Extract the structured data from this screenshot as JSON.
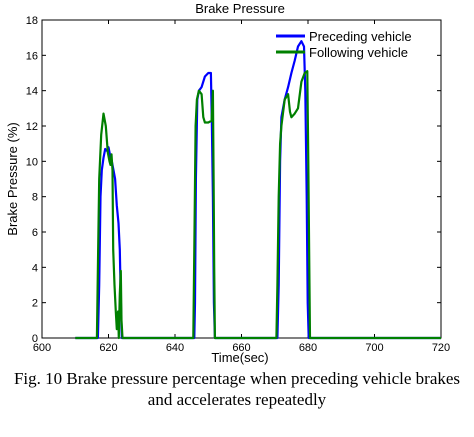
{
  "chart_data": {
    "type": "line",
    "title": "Brake Pressure",
    "xlabel": "Time(sec)",
    "ylabel": "Brake Pressure (%)",
    "xlim": [
      600,
      720
    ],
    "ylim": [
      0,
      18
    ],
    "xticks": [
      600,
      620,
      640,
      660,
      680,
      700,
      720
    ],
    "yticks": [
      0,
      2,
      4,
      6,
      8,
      10,
      12,
      14,
      16,
      18
    ],
    "grid": false,
    "legend_position": "top-right",
    "series": [
      {
        "name": "Preceding vehicle",
        "color": "#0000ff",
        "points": [
          [
            610,
            0
          ],
          [
            616.8,
            0
          ],
          [
            617.2,
            3
          ],
          [
            617.6,
            8
          ],
          [
            618.0,
            9.5
          ],
          [
            618.5,
            10.2
          ],
          [
            619.0,
            10.7
          ],
          [
            619.5,
            10.6
          ],
          [
            620.0,
            10.8
          ],
          [
            620.5,
            10.3
          ],
          [
            621.0,
            10.0
          ],
          [
            621.5,
            9.5
          ],
          [
            622.0,
            9.0
          ],
          [
            622.5,
            7.5
          ],
          [
            623.0,
            6.5
          ],
          [
            623.4,
            5.0
          ],
          [
            623.6,
            3.0
          ],
          [
            623.8,
            1.5
          ],
          [
            624.0,
            0
          ],
          [
            645.8,
            0
          ],
          [
            646.0,
            2
          ],
          [
            646.3,
            9
          ],
          [
            646.7,
            13.5
          ],
          [
            647.2,
            14.0
          ],
          [
            648.0,
            14.2
          ],
          [
            649.0,
            14.8
          ],
          [
            650.0,
            15.0
          ],
          [
            650.8,
            15.0
          ],
          [
            651.1,
            12
          ],
          [
            651.4,
            8
          ],
          [
            651.7,
            2
          ],
          [
            652.0,
            0
          ],
          [
            670.8,
            0
          ],
          [
            671.2,
            3
          ],
          [
            671.6,
            10
          ],
          [
            672.0,
            12.5
          ],
          [
            673.0,
            13.5
          ],
          [
            674.0,
            14.2
          ],
          [
            675.0,
            15.0
          ],
          [
            676.0,
            15.7
          ],
          [
            677.0,
            16.5
          ],
          [
            678.0,
            16.8
          ],
          [
            678.8,
            16.5
          ],
          [
            679.2,
            14
          ],
          [
            679.6,
            8
          ],
          [
            679.9,
            2
          ],
          [
            680.2,
            0
          ],
          [
            720,
            0
          ]
        ]
      },
      {
        "name": "Following vehicle",
        "color": "#008000",
        "points": [
          [
            610,
            0
          ],
          [
            616.5,
            0
          ],
          [
            616.8,
            4
          ],
          [
            617.2,
            9
          ],
          [
            617.8,
            11.5
          ],
          [
            618.5,
            12.7
          ],
          [
            619.2,
            12.0
          ],
          [
            619.8,
            10.5
          ],
          [
            620.3,
            10.0
          ],
          [
            620.6,
            9.8
          ],
          [
            620.9,
            10.4
          ],
          [
            621.2,
            9.5
          ],
          [
            621.4,
            5
          ],
          [
            621.8,
            3
          ],
          [
            622.2,
            1.5
          ],
          [
            622.5,
            0.5
          ],
          [
            622.9,
            1.5
          ],
          [
            623.1,
            0
          ],
          [
            623.4,
            2.5
          ],
          [
            623.7,
            3.8
          ],
          [
            623.9,
            1
          ],
          [
            624.2,
            0
          ],
          [
            645.5,
            0
          ],
          [
            645.8,
            5
          ],
          [
            646.2,
            12.0
          ],
          [
            646.6,
            13.5
          ],
          [
            647.2,
            14.0
          ],
          [
            648.0,
            13.8
          ],
          [
            648.5,
            12.5
          ],
          [
            649.0,
            12.2
          ],
          [
            650.0,
            12.2
          ],
          [
            651.0,
            12.3
          ],
          [
            651.4,
            14.0
          ],
          [
            651.6,
            9
          ],
          [
            651.8,
            4
          ],
          [
            652.0,
            0
          ],
          [
            670.5,
            0
          ],
          [
            670.8,
            3
          ],
          [
            671.2,
            8
          ],
          [
            671.6,
            11.0
          ],
          [
            672.0,
            12.0
          ],
          [
            673.0,
            13.5
          ],
          [
            674.0,
            13.8
          ],
          [
            674.6,
            12.8
          ],
          [
            675.0,
            12.5
          ],
          [
            676.0,
            12.7
          ],
          [
            677.0,
            13.0
          ],
          [
            678.0,
            14.5
          ],
          [
            679.0,
            15.0
          ],
          [
            679.8,
            15.1
          ],
          [
            680.1,
            10
          ],
          [
            680.4,
            4
          ],
          [
            680.6,
            0
          ],
          [
            720,
            0
          ]
        ]
      }
    ]
  },
  "caption": {
    "line1": "Fig. 10 Brake pressure percentage when preceding vehicle brakes",
    "line2": "and accelerates repeatedly"
  }
}
